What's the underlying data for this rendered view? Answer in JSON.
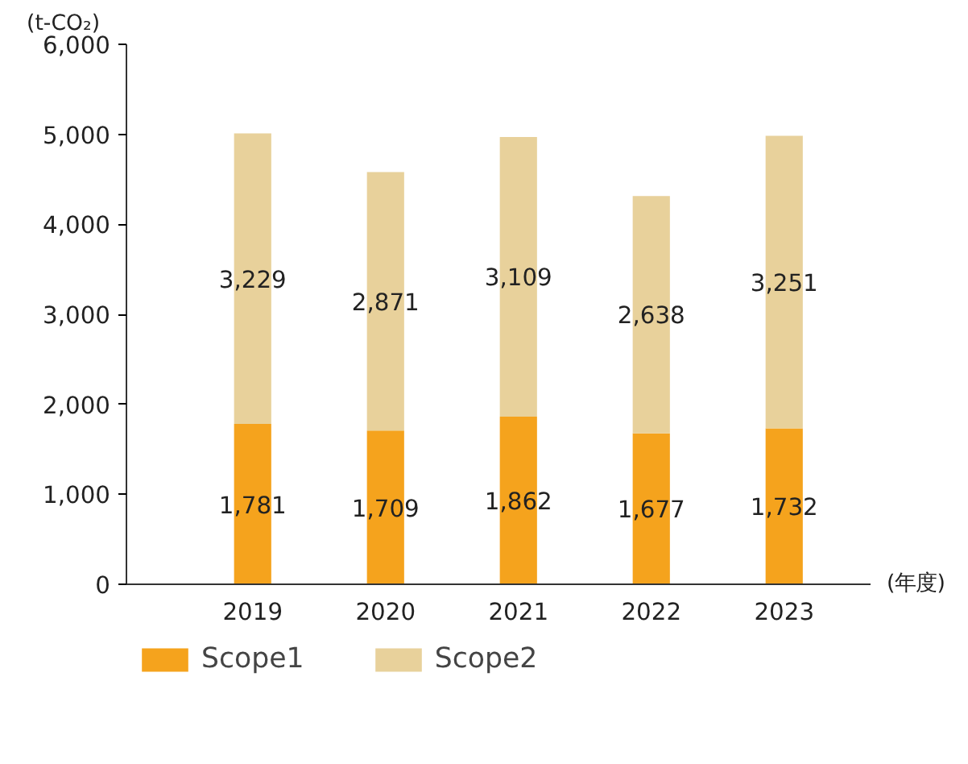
{
  "chart_data": {
    "type": "bar",
    "stacked": true,
    "ylabel": "(t-CO₂)",
    "xlabel": "(年度)",
    "categories": [
      "2019",
      "2020",
      "2021",
      "2022",
      "2023"
    ],
    "series": [
      {
        "name": "Scope1",
        "color": "#f5a31d",
        "values": [
          1781,
          1709,
          1862,
          1677,
          1732
        ],
        "value_labels": [
          "1,781",
          "1,709",
          "1,862",
          "1,677",
          "1,732"
        ]
      },
      {
        "name": "Scope2",
        "color": "#e8d19b",
        "values": [
          3229,
          2871,
          3109,
          2638,
          3251
        ],
        "value_labels": [
          "3,229",
          "2,871",
          "3,109",
          "2,638",
          "3,251"
        ]
      }
    ],
    "ylim": [
      0,
      6000
    ],
    "yticks": [
      {
        "value": 0,
        "label": "0"
      },
      {
        "value": 1000,
        "label": "1,000"
      },
      {
        "value": 2000,
        "label": "2,000"
      },
      {
        "value": 3000,
        "label": "3,000"
      },
      {
        "value": 4000,
        "label": "4,000"
      },
      {
        "value": 5000,
        "label": "5,000"
      },
      {
        "value": 6000,
        "label": "6,000"
      }
    ],
    "legend": "bottom"
  }
}
